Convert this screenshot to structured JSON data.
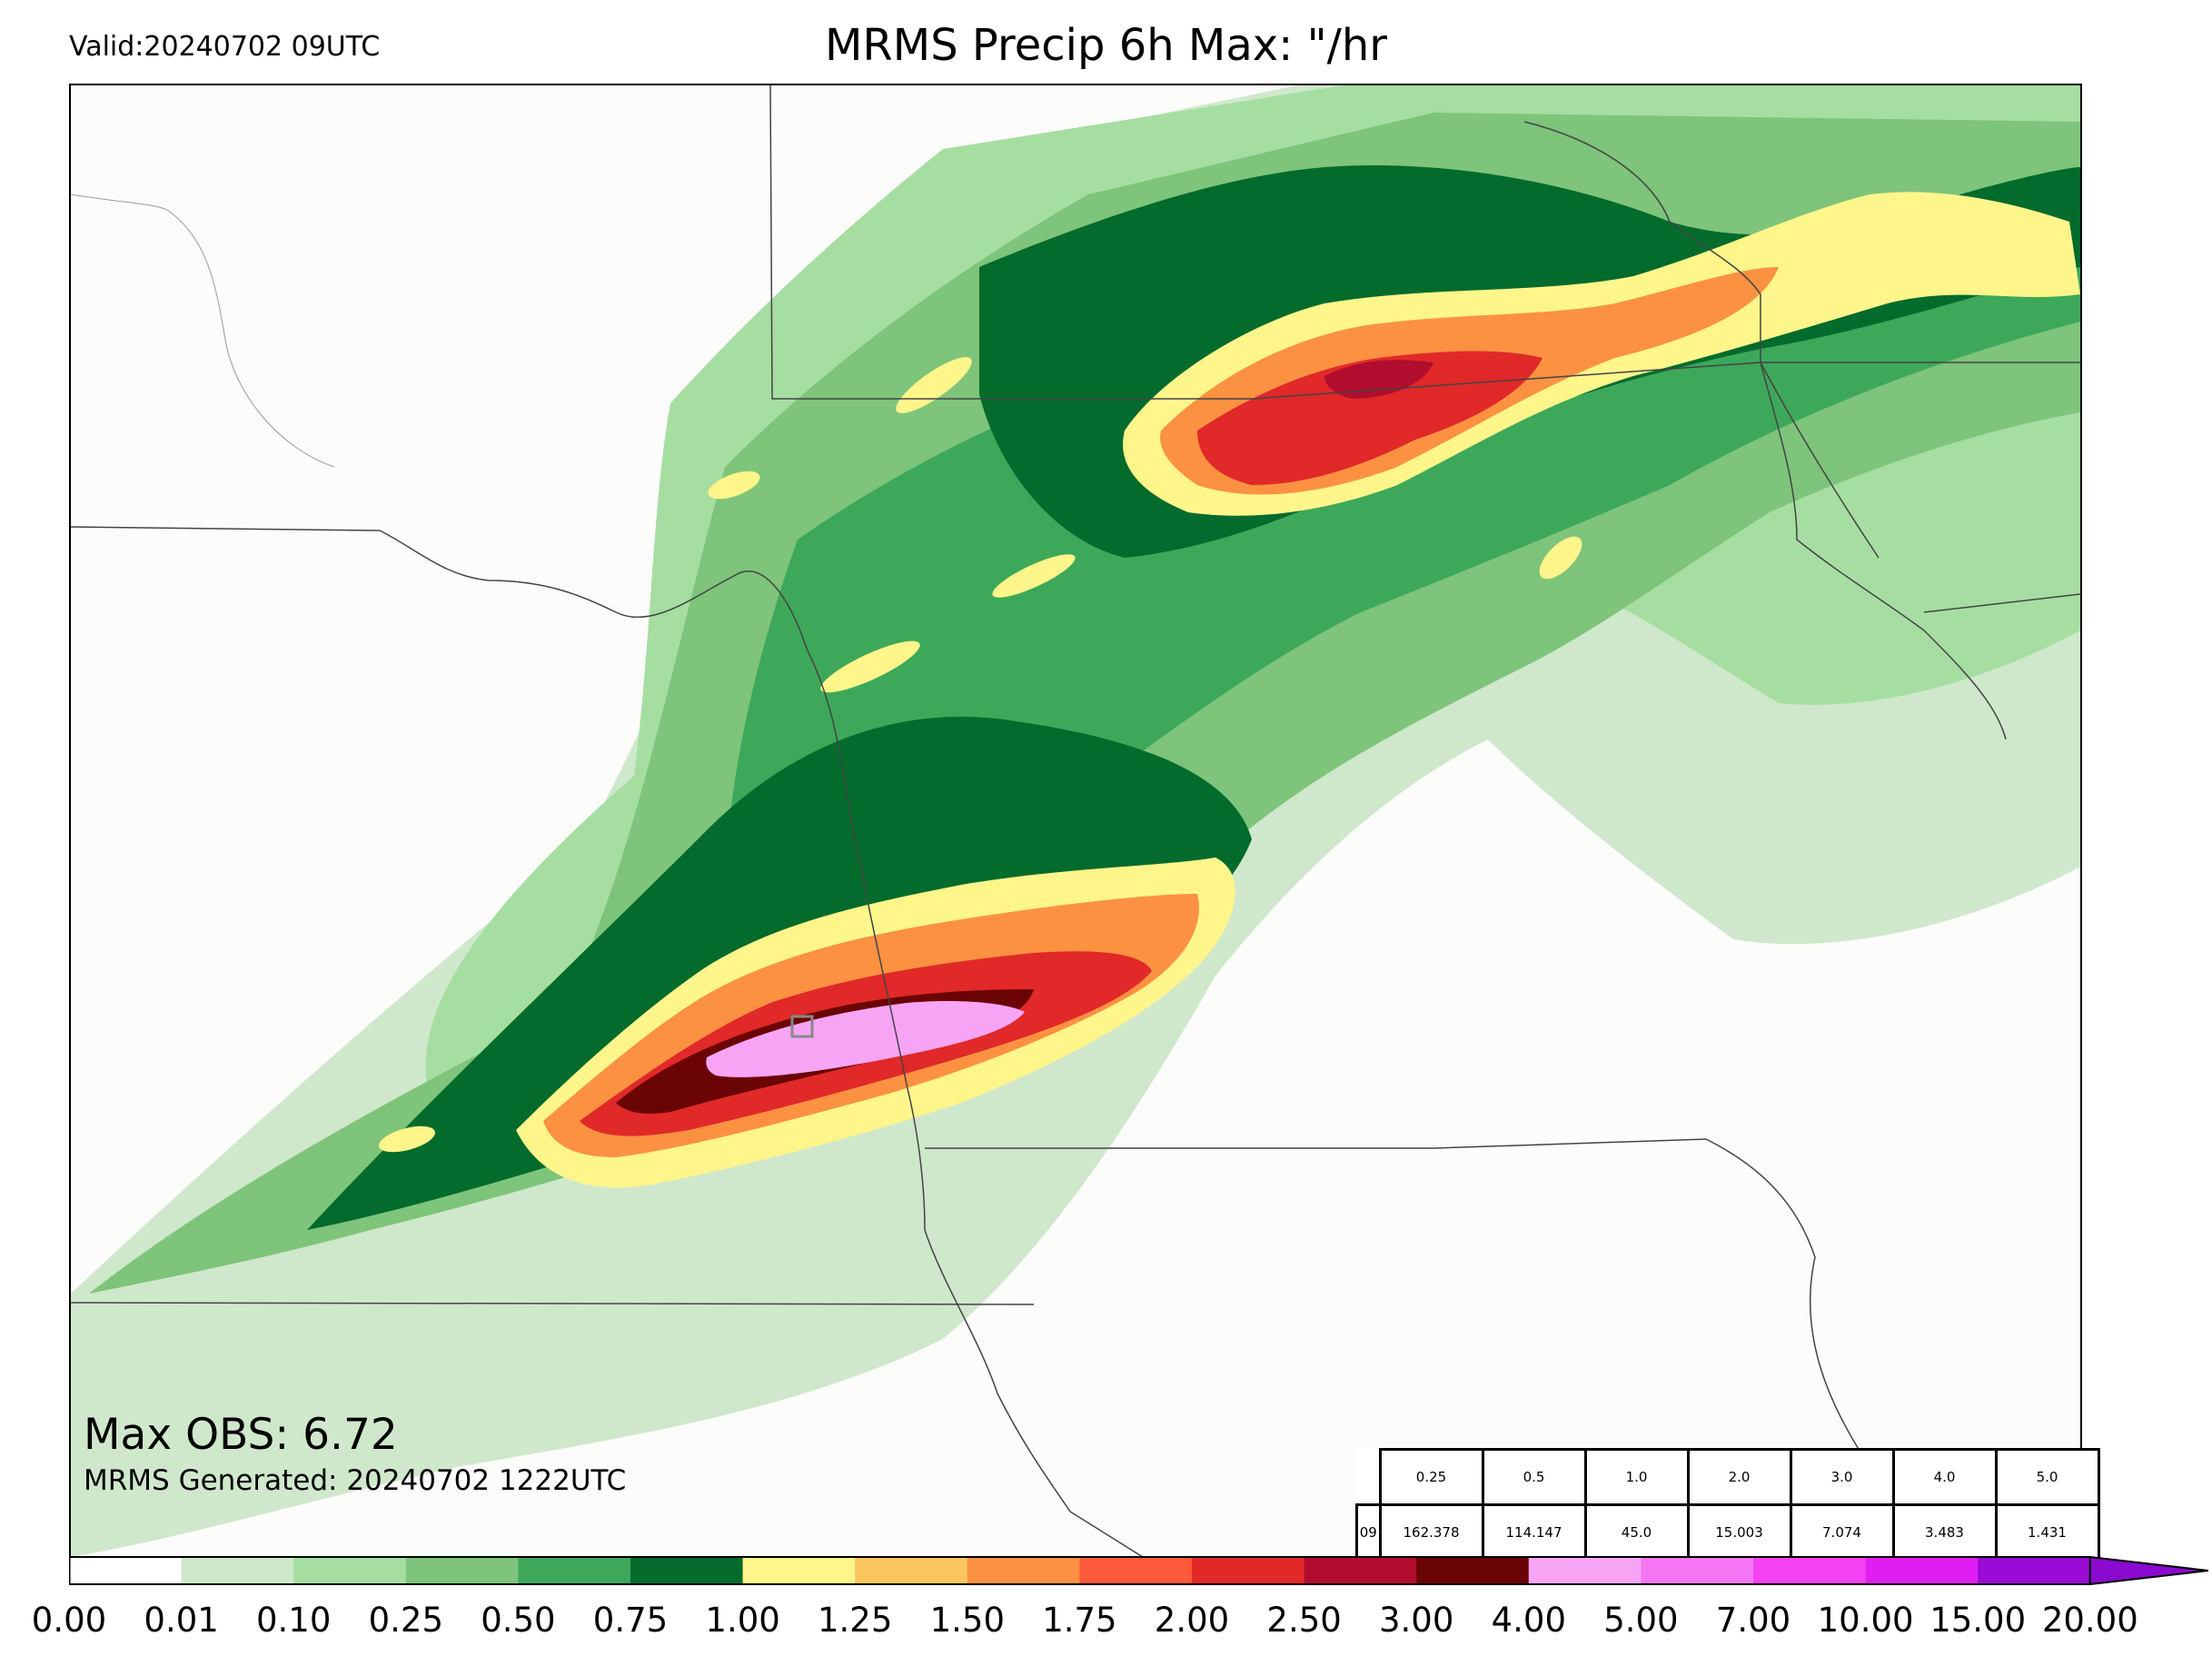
{
  "header": {
    "valid": "Valid:20240702 09UTC",
    "title": "MRMS Precip 6h Max: \"/hr"
  },
  "annotations": {
    "max_obs": "Max OBS: 6.72",
    "generated": "MRMS Generated: 20240702 1222UTC"
  },
  "stats_table": {
    "thresholds": [
      "0.25",
      "0.5",
      "1.0",
      "2.0",
      "3.0",
      "4.0",
      "5.0"
    ],
    "row_label": "09",
    "values": [
      "162.378",
      "114.147",
      "45.0",
      "15.003",
      "7.074",
      "3.483",
      "1.431"
    ]
  },
  "colorbar": {
    "ticks": [
      "0.00",
      "0.01",
      "0.10",
      "0.25",
      "0.50",
      "0.75",
      "1.00",
      "1.25",
      "1.50",
      "1.75",
      "2.00",
      "2.50",
      "3.00",
      "4.00",
      "5.00",
      "7.00",
      "10.00",
      "15.00",
      "20.00"
    ],
    "colors": [
      "#ffffff",
      "#cfe8cb",
      "#a6dea2",
      "#7ec47a",
      "#3da85a",
      "#036b2c",
      "#fef58b",
      "#fcc55e",
      "#fc9142",
      "#fc5a3a",
      "#e02928",
      "#b20d2e",
      "#6b0404",
      "#f8a4f5",
      "#f576f2",
      "#f342f2",
      "#e01ef2",
      "#9a0bd5"
    ],
    "extend_color": "#8a0ad0"
  },
  "colors": {
    "rain_light": "#cfe8cb",
    "rain_mid": "#7ec47a",
    "rain_heavy": "#036b2c",
    "core": "#6b0404",
    "max": "#f8a4f5"
  }
}
